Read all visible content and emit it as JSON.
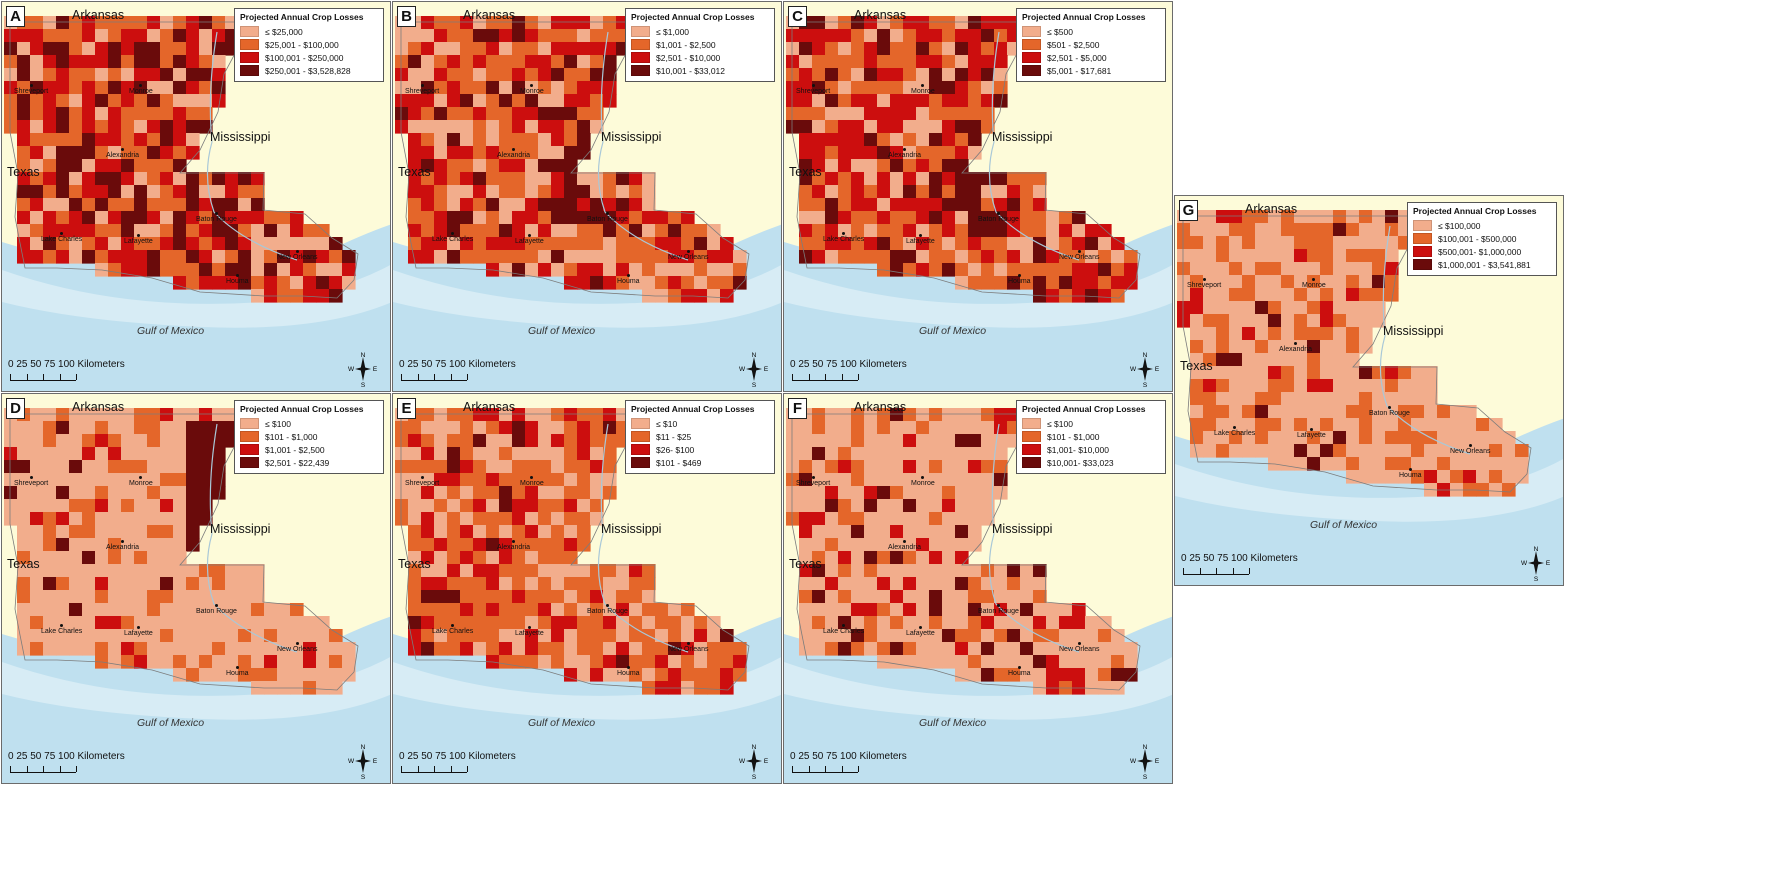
{
  "legend_title": "Projected Annual Crop Losses",
  "colors": {
    "class1": "#f2ad8c",
    "class2": "#e4662a",
    "class3": "#cc0e0e",
    "class4": "#6a0b0b",
    "land": "#fdfbd9",
    "water": "#bfe0ef",
    "water_light": "#d7ecf5"
  },
  "labels": {
    "arkansas": "Arkansas",
    "mississippi": "Mississippi",
    "texas": "Texas",
    "gulf": "Gulf of Mexico",
    "scale": "0 25 50 75 100 Kilometers",
    "north": "N",
    "south": "S",
    "east": "E",
    "west": "W"
  },
  "cities": [
    "Shreveport",
    "Monroe",
    "Alexandria",
    "Lake Charles",
    "Lafayette",
    "Baton Rouge",
    "New Orleans",
    "Houma"
  ],
  "panels": [
    {
      "letter": "A",
      "legend": [
        "≤ $25,000",
        "$25,001 - $100,000",
        "$100,001 - $250,000",
        "$250,001 - $3,528,828"
      ]
    },
    {
      "letter": "B",
      "legend": [
        "≤ $1,000",
        "$1,001 - $2,500",
        "$2,501 - $10,000",
        "$10,001 - $33,012"
      ]
    },
    {
      "letter": "C",
      "legend": [
        "≤ $500",
        "$501 - $2,500",
        "$2,501 - $5,000",
        "$5,001 - $17,681"
      ]
    },
    {
      "letter": "D",
      "legend": [
        "≤ $100",
        "$101 - $1,000",
        "$1,001 - $2,500",
        "$2,501 - $22,439"
      ]
    },
    {
      "letter": "E",
      "legend": [
        "≤ $10",
        "$11 - $25",
        "$26- $100",
        "$101 - $469"
      ]
    },
    {
      "letter": "F",
      "legend": [
        "≤ $100",
        "$101 - $1,000",
        "$1,001- $10,000",
        "$10,001- $33,023"
      ]
    },
    {
      "letter": "G",
      "legend": [
        "≤ $100,000",
        "$100,001 - $500,000",
        "$500,001- $1,000,000",
        "$1,000,001 - $3,541,881"
      ]
    }
  ]
}
